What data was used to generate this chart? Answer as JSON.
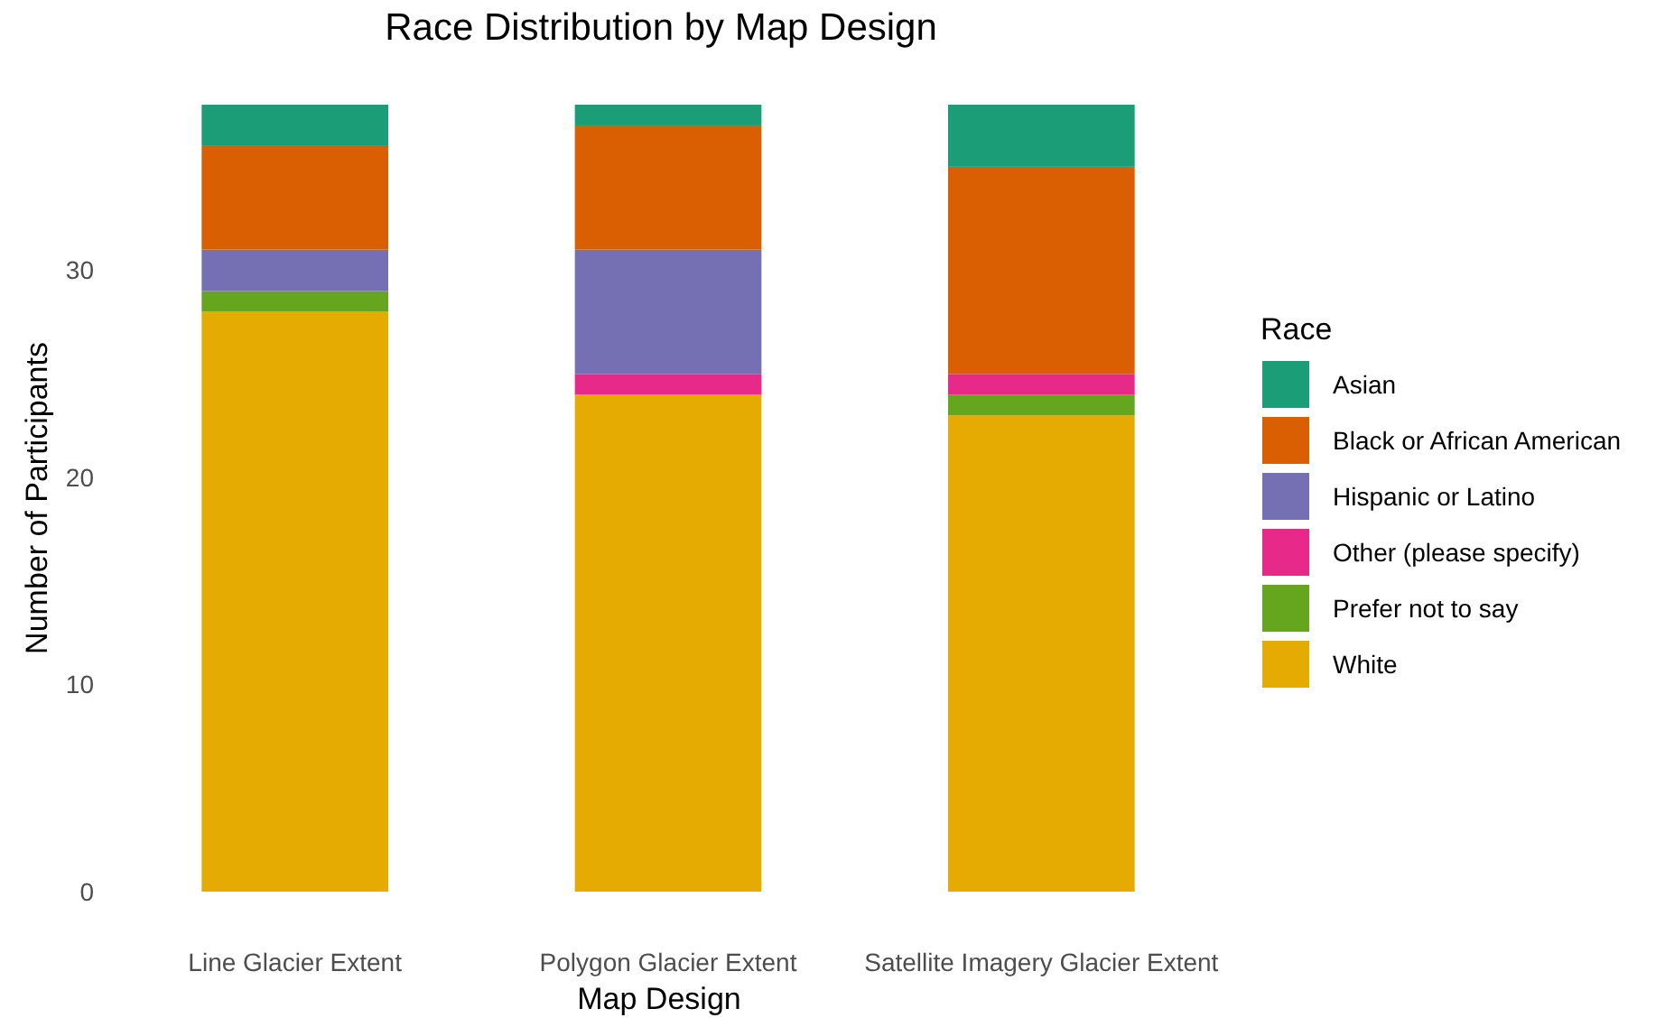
{
  "chart_data": {
    "type": "bar",
    "title": "Race Distribution by Map Design",
    "xlabel": "Map Design",
    "ylabel": "Number of Participants",
    "legend_title": "Race",
    "categories": [
      "Line Glacier Extent",
      "Polygon Glacier Extent",
      "Satellite Imagery Glacier Extent"
    ],
    "stacked": true,
    "ylim": [
      0,
      38
    ],
    "yticks": [
      0,
      10,
      20,
      30
    ],
    "grid": false,
    "legend": "right",
    "series": [
      {
        "name": "White",
        "color": "#e6ab02",
        "values": [
          28,
          24,
          23
        ]
      },
      {
        "name": "Prefer not to say",
        "color": "#66a61e",
        "values": [
          1,
          0,
          1
        ]
      },
      {
        "name": "Other (please specify)",
        "color": "#e7298a",
        "values": [
          0,
          1,
          1
        ]
      },
      {
        "name": "Hispanic or Latino",
        "color": "#7570b3",
        "values": [
          2,
          6,
          0
        ]
      },
      {
        "name": "Black or African American",
        "color": "#d95f02",
        "values": [
          5,
          6,
          10
        ]
      },
      {
        "name": "Asian",
        "color": "#1b9e77",
        "values": [
          2,
          1,
          3
        ]
      }
    ]
  }
}
